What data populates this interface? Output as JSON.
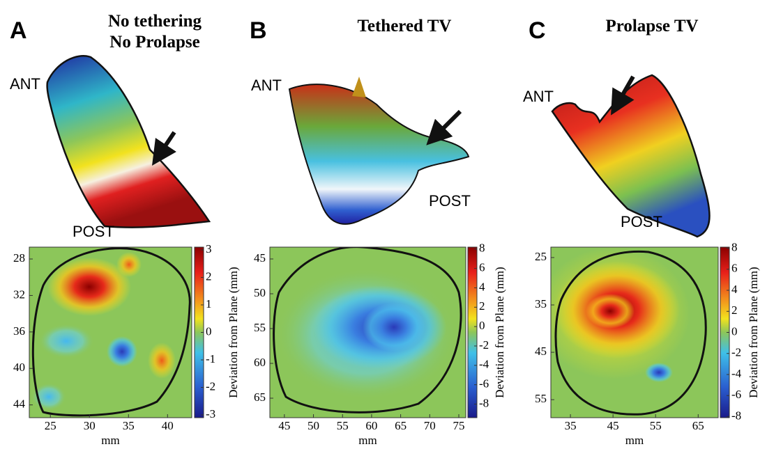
{
  "chart_data": [
    {
      "type": "heatmap",
      "panel": "A",
      "title": [
        "No tethering",
        "No Prolapse"
      ],
      "annotations": [
        "ANT",
        "POST"
      ],
      "xlabel": "mm",
      "xlim": [
        22.3,
        43.1
      ],
      "xticks": [
        25,
        30,
        35,
        40
      ],
      "ylim": [
        26.7,
        45.4
      ],
      "yticks": [
        28,
        32,
        36,
        40,
        44
      ],
      "colorbar_label": "Deviation from Plane (mm)",
      "clim": [
        -3.1,
        3.1
      ],
      "cticks": [
        3,
        2,
        1,
        0,
        -1,
        -2,
        -3
      ]
    },
    {
      "type": "heatmap",
      "panel": "B",
      "title": [
        "Tethered TV"
      ],
      "annotations": [
        "ANT",
        "POST"
      ],
      "xlabel": "mm",
      "xlim": [
        42.5,
        76.2
      ],
      "xticks": [
        45,
        50,
        55,
        60,
        65,
        70,
        75
      ],
      "ylim": [
        43.3,
        67.8
      ],
      "yticks": [
        45,
        50,
        55,
        60,
        65
      ],
      "colorbar_label": "Deviation from Plane (mm)",
      "clim": [
        -9.4,
        8.2
      ],
      "cticks": [
        8,
        6,
        4,
        2,
        0,
        -2,
        -4,
        -6,
        -8
      ]
    },
    {
      "type": "heatmap",
      "panel": "C",
      "title": [
        "Prolapse TV"
      ],
      "annotations": [
        "ANT",
        "POST"
      ],
      "xlabel": "mm",
      "xlim": [
        30.4,
        69.7
      ],
      "xticks": [
        35,
        45,
        55,
        65
      ],
      "ylim": [
        22.8,
        58.8
      ],
      "yticks": [
        25,
        35,
        45,
        55
      ],
      "colorbar_label": "Deviation from Plane (mm)",
      "clim": [
        -8.1,
        8.1
      ],
      "cticks": [
        8,
        6,
        4,
        2,
        0,
        -2,
        -4,
        -6,
        -8
      ]
    }
  ]
}
